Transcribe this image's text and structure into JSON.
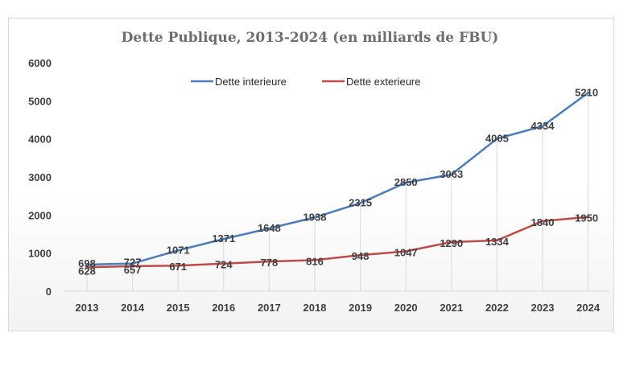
{
  "chart_data": {
    "type": "line",
    "title": "Dette Publique, 2013-2024 (en milliards de FBU)",
    "xlabel": "",
    "ylabel": "",
    "categories": [
      "2013",
      "2014",
      "2015",
      "2016",
      "2017",
      "2018",
      "2019",
      "2020",
      "2021",
      "2022",
      "2023",
      "2024"
    ],
    "ylim": [
      0,
      6000
    ],
    "yticks": [
      0,
      1000,
      2000,
      3000,
      4000,
      5000,
      6000
    ],
    "grid": "vertical drop lines",
    "legend_position": "top",
    "series": [
      {
        "name": "Dette interieure",
        "color": "#4a7ebb",
        "values": [
          698,
          727,
          1071,
          1371,
          1648,
          1938,
          2315,
          2850,
          3063,
          4005,
          4334,
          5210
        ]
      },
      {
        "name": "Dette exterieure",
        "color": "#be4b48",
        "values": [
          628,
          657,
          671,
          724,
          778,
          816,
          948,
          1047,
          1290,
          1334,
          1840,
          1950
        ]
      }
    ]
  }
}
